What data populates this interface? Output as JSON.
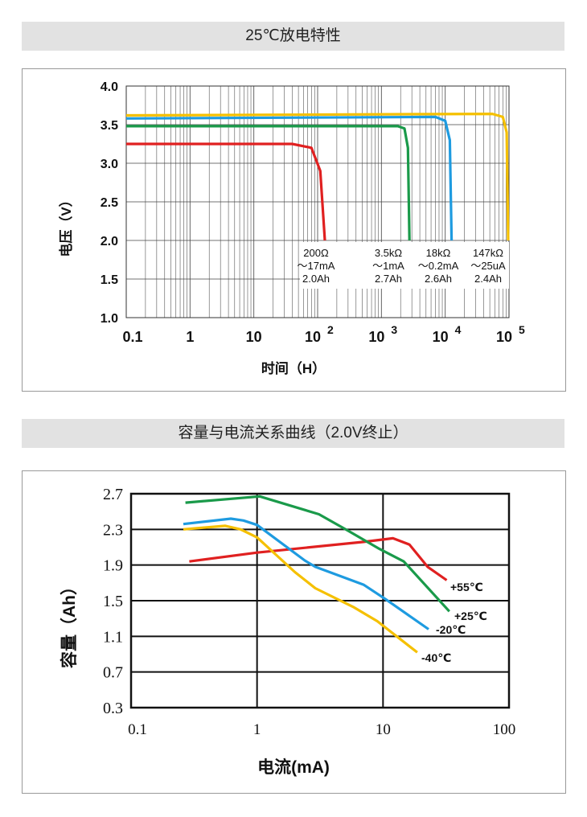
{
  "chart_data": [
    {
      "type": "line",
      "title": "25℃放电特性",
      "xlabel": "时间（H）",
      "ylabel": "电压（V）",
      "xscale": "log",
      "xlim": [
        0.1,
        100000
      ],
      "ylim": [
        1.0,
        4.0
      ],
      "xticks": [
        "0.1",
        "1",
        "10",
        "10",
        "10",
        "10",
        "10"
      ],
      "xtick_exp": [
        "",
        "",
        "",
        "2",
        "3",
        "4",
        "5"
      ],
      "yticks": [
        "4.0",
        "3.5",
        "3.0",
        "2.5",
        "2.0",
        "1.5",
        "1.0"
      ],
      "grid": true,
      "series": [
        {
          "name": "200Ω ~17mA 2.0Ah",
          "color": "#e02020",
          "label": [
            "200Ω",
            "～17mA",
            "2.0Ah"
          ],
          "x": [
            0.1,
            40,
            80,
            110,
            130
          ],
          "y": [
            3.25,
            3.25,
            3.2,
            2.9,
            2.0
          ]
        },
        {
          "name": "3.5kΩ ~1mA 2.7Ah",
          "color": "#1a9a4a",
          "label": [
            "3.5kΩ",
            "～1mA",
            "2.7Ah"
          ],
          "x": [
            0.1,
            1800,
            2300,
            2600,
            2750
          ],
          "y": [
            3.48,
            3.48,
            3.45,
            3.2,
            2.0
          ]
        },
        {
          "name": "18kΩ ~0.2mA 2.6Ah",
          "color": "#1e9be0",
          "label": [
            "18kΩ",
            "～0.2mA",
            "2.6Ah"
          ],
          "x": [
            0.1,
            7000,
            10000,
            11800,
            12600
          ],
          "y": [
            3.58,
            3.6,
            3.55,
            3.3,
            2.0
          ]
        },
        {
          "name": "147kΩ ~25uA 2.4Ah",
          "color": "#f5c000",
          "label": [
            "147kΩ",
            "～25uA",
            "2.4Ah"
          ],
          "x": [
            0.1,
            55000,
            80000,
            92000,
            97000
          ],
          "y": [
            3.62,
            3.64,
            3.6,
            3.4,
            2.0
          ]
        }
      ]
    },
    {
      "type": "line",
      "title": "容量与电流关系曲线（2.0V终止）",
      "xlabel": "电流(mA)",
      "ylabel": "容量（Ah）",
      "xscale": "log",
      "xlim": [
        0.1,
        100
      ],
      "ylim": [
        0.3,
        2.7
      ],
      "xticks": [
        "0.1",
        "1",
        "10",
        "100"
      ],
      "yticks": [
        "2.7",
        "2.3",
        "1.9",
        "1.5",
        "1.1",
        "0.7",
        "0.3"
      ],
      "grid": true,
      "series": [
        {
          "name": "+55℃",
          "color": "#e02020",
          "x": [
            0.29,
            1.0,
            7.0,
            12,
            16.2,
            22.6,
            32
          ],
          "y": [
            1.94,
            2.04,
            2.16,
            2.2,
            2.13,
            1.88,
            1.73
          ]
        },
        {
          "name": "+25℃",
          "color": "#1a9a4a",
          "x": [
            0.27,
            1.05,
            3.1,
            5.2,
            9.4,
            14.6,
            33.6
          ],
          "y": [
            2.6,
            2.67,
            2.47,
            2.29,
            2.08,
            1.94,
            1.38
          ]
        },
        {
          "name": "-20℃",
          "color": "#1e9be0",
          "x": [
            0.26,
            0.62,
            0.78,
            1.0,
            2.4,
            2.9,
            7.0,
            10.4,
            23
          ],
          "y": [
            2.36,
            2.42,
            2.4,
            2.35,
            1.95,
            1.88,
            1.68,
            1.52,
            1.18
          ]
        },
        {
          "name": "-40℃",
          "color": "#f5c000",
          "x": [
            0.26,
            0.56,
            0.74,
            1.0,
            2.0,
            2.9,
            5.8,
            9.0,
            18.7
          ],
          "y": [
            2.3,
            2.34,
            2.3,
            2.21,
            1.82,
            1.64,
            1.43,
            1.27,
            0.92
          ]
        }
      ]
    }
  ]
}
